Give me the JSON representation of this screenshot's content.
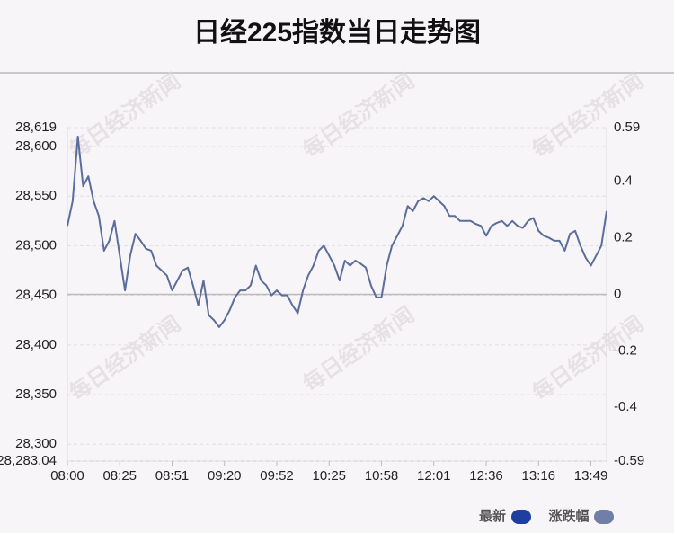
{
  "chart_data": {
    "type": "line",
    "title": "日经225指数当日走势图",
    "watermark": "每日经济新闻",
    "categories": [
      "08:00",
      null,
      null,
      null,
      null,
      null,
      null,
      null,
      null,
      null,
      "08:25",
      null,
      null,
      null,
      null,
      null,
      null,
      null,
      null,
      null,
      "08:51",
      null,
      null,
      null,
      null,
      null,
      null,
      null,
      null,
      null,
      "09:20",
      null,
      null,
      null,
      null,
      null,
      null,
      null,
      null,
      null,
      "09:52",
      null,
      null,
      null,
      null,
      null,
      null,
      null,
      null,
      null,
      "10:25",
      null,
      null,
      null,
      null,
      null,
      null,
      null,
      null,
      null,
      "10:58",
      null,
      null,
      null,
      null,
      null,
      null,
      null,
      null,
      null,
      "12:01",
      null,
      null,
      null,
      null,
      null,
      null,
      null,
      null,
      null,
      "12:36",
      null,
      null,
      null,
      null,
      null,
      null,
      null,
      null,
      null,
      "13:16",
      null,
      null,
      null,
      null,
      null,
      null,
      null,
      null,
      null,
      "13:49",
      null,
      null,
      null
    ],
    "series": [
      {
        "name": "最新",
        "color": "#5b6d9b",
        "values": [
          28520,
          28545,
          28610,
          28560,
          28570,
          28545,
          28530,
          28495,
          28505,
          28525,
          28490,
          28455,
          28490,
          28512,
          28505,
          28497,
          28495,
          28480,
          28475,
          28470,
          28455,
          28465,
          28475,
          28478,
          28460,
          28440,
          28465,
          28430,
          28425,
          28418,
          28425,
          28435,
          28448,
          28455,
          28455,
          28460,
          28480,
          28465,
          28460,
          28450,
          28455,
          28450,
          28450,
          28440,
          28432,
          28455,
          28470,
          28480,
          28495,
          28500,
          28490,
          28480,
          28465,
          28485,
          28480,
          28485,
          28482,
          28478,
          28460,
          28448,
          28448,
          28480,
          28500,
          28510,
          28520,
          28540,
          28535,
          28545,
          28548,
          28545,
          28550,
          28545,
          28540,
          28530,
          28530,
          28525,
          28525,
          28525,
          28522,
          28520,
          28510,
          28520,
          28523,
          28525,
          28520,
          28525,
          28520,
          28518,
          28525,
          28528,
          28515,
          28510,
          28508,
          28505,
          28505,
          28495,
          28512,
          28515,
          28500,
          28488,
          28480,
          28490,
          28500,
          28535
        ]
      }
    ],
    "legend": [
      {
        "name": "最新",
        "color": "#1d3f9f"
      },
      {
        "name": "涨跌幅",
        "color": "#6f7fa8"
      }
    ],
    "ylim": [
      28283.04,
      28619
    ],
    "yticks": [
      {
        "value": 28283.04,
        "label": "28,283.04"
      },
      {
        "value": 28300,
        "label": "28,300"
      },
      {
        "value": 28350,
        "label": "28,350"
      },
      {
        "value": 28400,
        "label": "28,400"
      },
      {
        "value": 28450,
        "label": "28,450"
      },
      {
        "value": 28500,
        "label": "28,500"
      },
      {
        "value": 28550,
        "label": "28,550"
      },
      {
        "value": 28600,
        "label": "28,600"
      },
      {
        "value": 28619,
        "label": "28,619"
      }
    ],
    "y2lim": [
      -0.59,
      0.59
    ],
    "y2ticks": [
      -0.59,
      -0.4,
      -0.2,
      0,
      0.2,
      0.4,
      0.59
    ],
    "grid": true
  }
}
